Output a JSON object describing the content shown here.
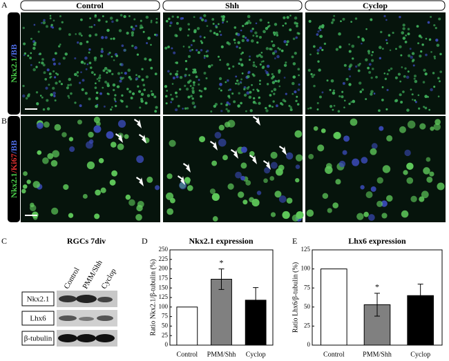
{
  "panel_labels": [
    "A",
    "B",
    "C",
    "D",
    "E"
  ],
  "columns": [
    "Control",
    "Shh",
    "Cyclop"
  ],
  "row_labels": [
    [
      "Nkx2.1",
      "/BB"
    ],
    [
      "Nkx2.1",
      "/Ki67",
      "/BB"
    ]
  ],
  "blot": {
    "title": "RGCs 7div",
    "lanes": [
      "Control",
      "PMM/Shh",
      "Cyclop"
    ],
    "rows": [
      "Nkx2.1",
      "Lhx6",
      "β-tubulin"
    ]
  },
  "chart_data": [
    {
      "type": "bar",
      "title": "Nkx2.1 expression",
      "y_label": "Ratio Nkx2.1/β-tubulin (%)",
      "categories": [
        "Control",
        "PMM/Shh",
        "Cyclop"
      ],
      "values": [
        100,
        173,
        118
      ],
      "errors": [
        null,
        27,
        33
      ],
      "annotations": [
        null,
        "*",
        null
      ],
      "colors": [
        "#ffffff",
        "#808080",
        "#000000"
      ],
      "ylim": [
        0,
        250
      ],
      "yticks": [
        0,
        25,
        50,
        75,
        100,
        125,
        150,
        175,
        200,
        225,
        250
      ]
    },
    {
      "type": "bar",
      "title": "Lhx6 expression",
      "y_label": "Ratio Lhx6/β-tubulin (%)",
      "categories": [
        "Control",
        "PMM/Shh",
        "Cyclop"
      ],
      "values": [
        100,
        53,
        65
      ],
      "errors": [
        null,
        15,
        15
      ],
      "annotations": [
        null,
        "*",
        null
      ],
      "colors": [
        "#ffffff",
        "#808080",
        "#000000"
      ],
      "ylim": [
        0,
        125
      ],
      "yticks": [
        0,
        25,
        50,
        75,
        100,
        125
      ]
    }
  ]
}
